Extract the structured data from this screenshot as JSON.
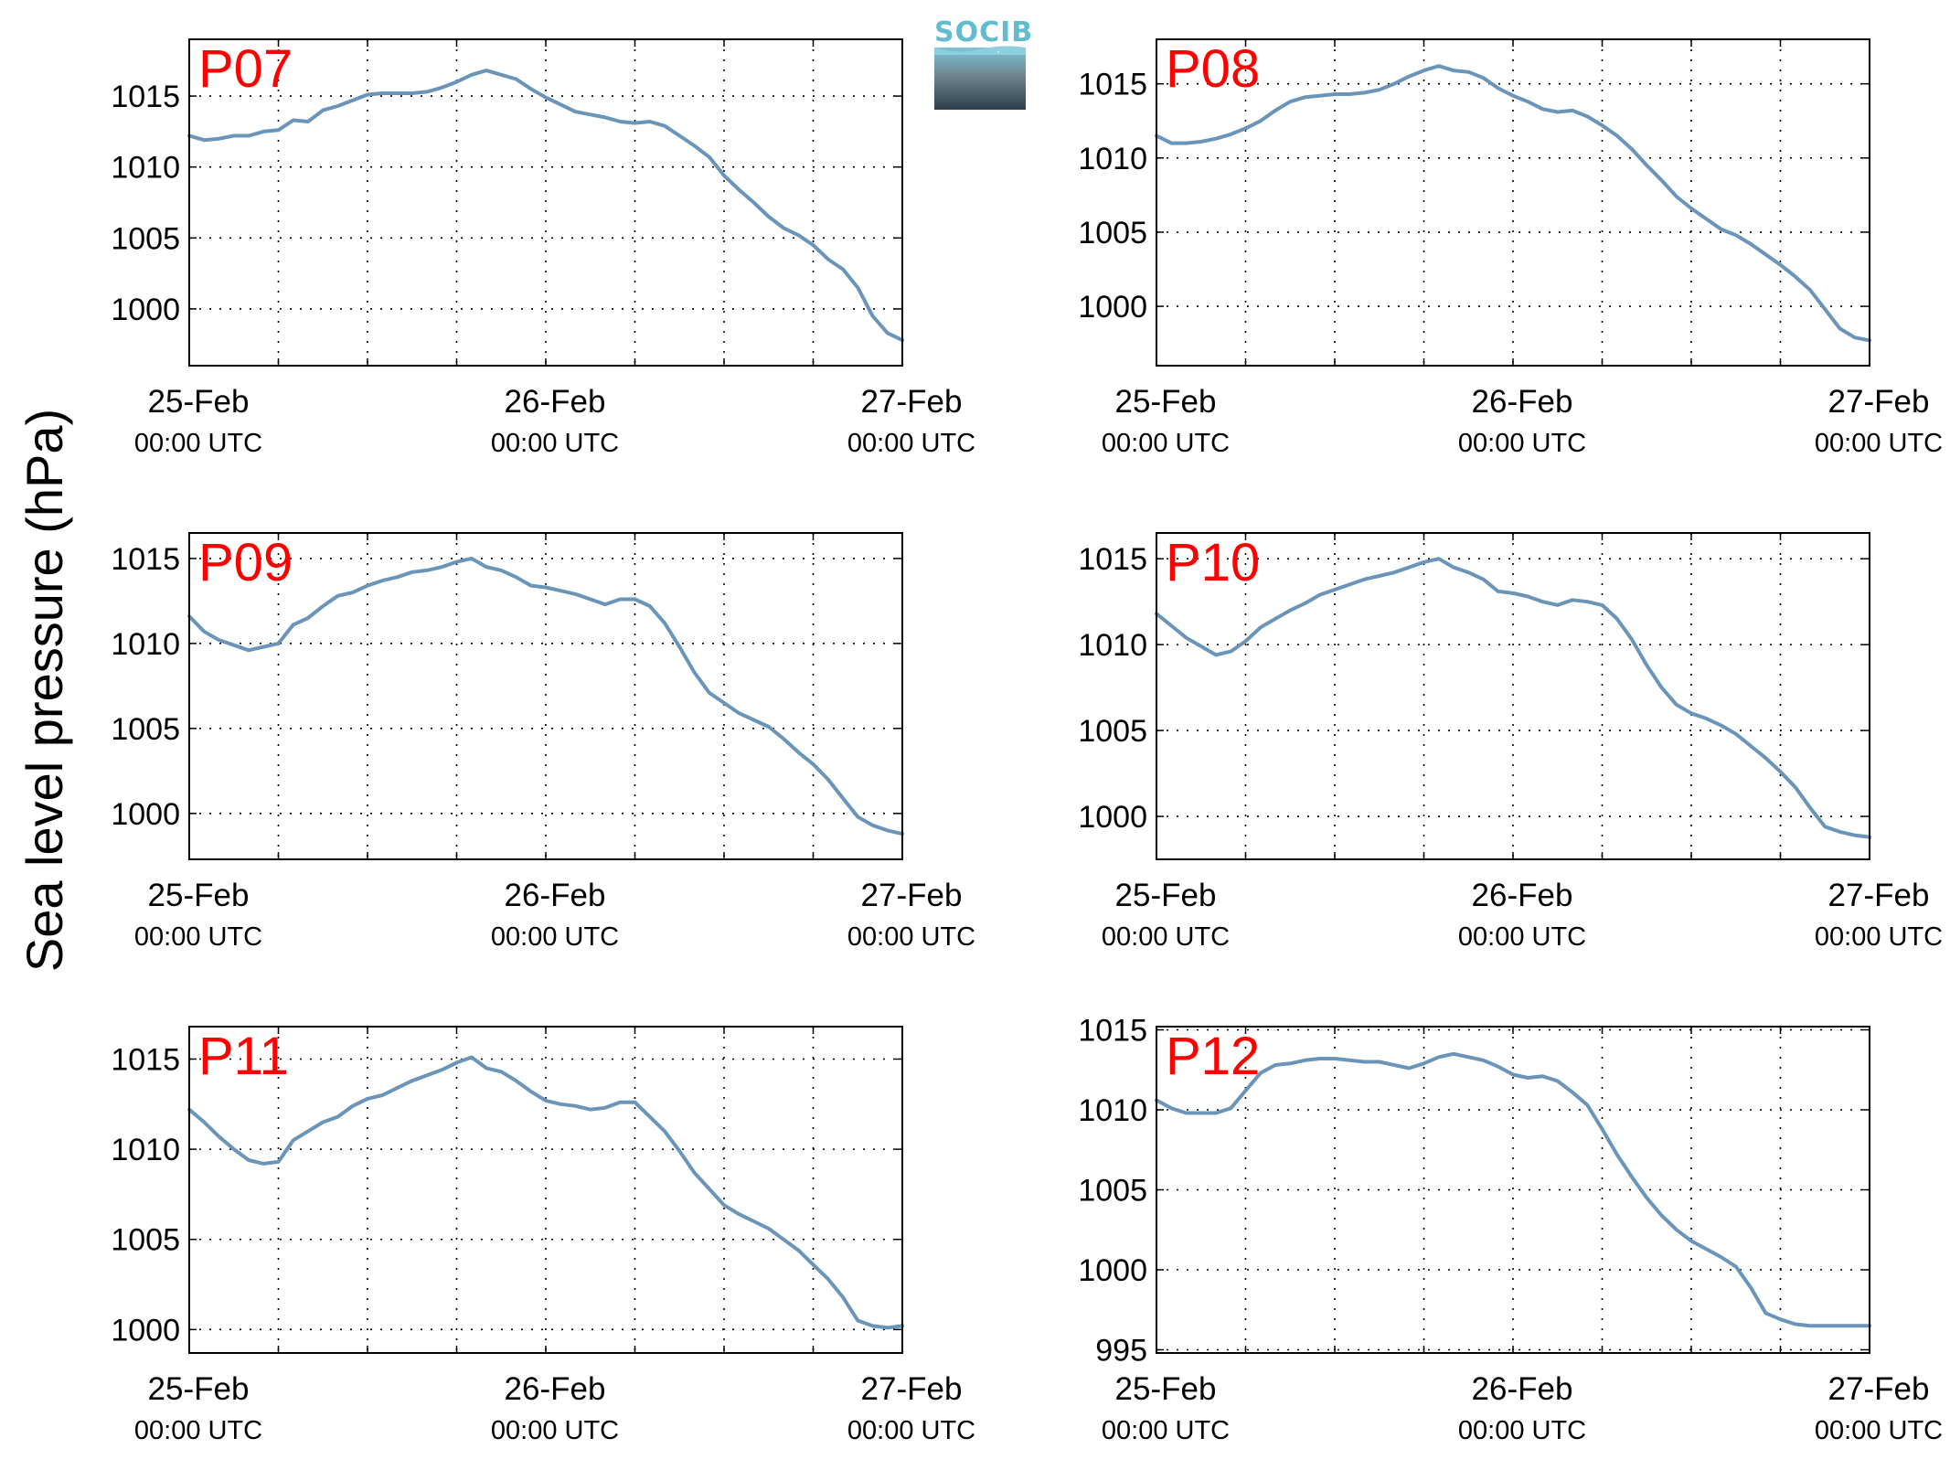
{
  "ylabel": "Sea level pressure (hPa)",
  "logo": {
    "text": "SOCIB"
  },
  "line_color": "#6a95b8",
  "label_color": "#ff0000",
  "chart_data": [
    {
      "type": "line",
      "title": "P07",
      "ylim": [
        996,
        1019
      ],
      "yticks": [
        1000,
        1005,
        1010,
        1015
      ],
      "xlim": [
        0,
        48
      ],
      "xticks": [
        0,
        24,
        48
      ],
      "xticklabels": [
        [
          "25-Feb",
          "00:00 UTC"
        ],
        [
          "26-Feb",
          "00:00 UTC"
        ],
        [
          "27-Feb",
          "00:00 UTC"
        ]
      ],
      "grid": true,
      "x": [
        0,
        1,
        2,
        3,
        4,
        5,
        6,
        7,
        8,
        9,
        10,
        11,
        12,
        13,
        14,
        15,
        16,
        17,
        18,
        19,
        20,
        21,
        22,
        23,
        24,
        25,
        26,
        27,
        28,
        29,
        30,
        31,
        32,
        33,
        34,
        35,
        36,
        37,
        38,
        39,
        40,
        41,
        42,
        43,
        44,
        45,
        46,
        47,
        48
      ],
      "values": [
        1012.2,
        1011.9,
        1012.0,
        1012.2,
        1012.2,
        1012.5,
        1012.6,
        1013.3,
        1013.2,
        1014.0,
        1014.3,
        1014.7,
        1015.1,
        1015.2,
        1015.2,
        1015.2,
        1015.3,
        1015.6,
        1016.0,
        1016.5,
        1016.8,
        1016.5,
        1016.2,
        1015.5,
        1014.9,
        1014.4,
        1013.9,
        1013.7,
        1013.5,
        1013.2,
        1013.1,
        1013.2,
        1012.9,
        1012.2,
        1011.5,
        1010.7,
        1009.4,
        1008.4,
        1007.5,
        1006.5,
        1005.7,
        1005.2,
        1004.5,
        1003.5,
        1002.8,
        1001.5,
        999.5,
        998.3,
        997.8
      ]
    },
    {
      "type": "line",
      "title": "P08",
      "ylim": [
        996,
        1018
      ],
      "yticks": [
        1000,
        1005,
        1010,
        1015
      ],
      "xlim": [
        0,
        48
      ],
      "xticks": [
        0,
        24,
        48
      ],
      "xticklabels": [
        [
          "25-Feb",
          "00:00 UTC"
        ],
        [
          "26-Feb",
          "00:00 UTC"
        ],
        [
          "27-Feb",
          "00:00 UTC"
        ]
      ],
      "grid": true,
      "x": [
        0,
        1,
        2,
        3,
        4,
        5,
        6,
        7,
        8,
        9,
        10,
        11,
        12,
        13,
        14,
        15,
        16,
        17,
        18,
        19,
        20,
        21,
        22,
        23,
        24,
        25,
        26,
        27,
        28,
        29,
        30,
        31,
        32,
        33,
        34,
        35,
        36,
        37,
        38,
        39,
        40,
        41,
        42,
        43,
        44,
        45,
        46,
        47,
        48
      ],
      "values": [
        1011.5,
        1011.0,
        1011.0,
        1011.1,
        1011.3,
        1011.6,
        1012.0,
        1012.5,
        1013.2,
        1013.8,
        1014.1,
        1014.2,
        1014.3,
        1014.3,
        1014.4,
        1014.6,
        1015.0,
        1015.5,
        1015.9,
        1016.2,
        1015.9,
        1015.8,
        1015.4,
        1014.7,
        1014.2,
        1013.8,
        1013.3,
        1013.1,
        1013.2,
        1012.8,
        1012.2,
        1011.5,
        1010.6,
        1009.5,
        1008.5,
        1007.4,
        1006.6,
        1005.9,
        1005.2,
        1004.8,
        1004.2,
        1003.5,
        1002.8,
        1002.0,
        1001.1,
        999.8,
        998.5,
        997.9,
        997.7
      ]
    },
    {
      "type": "line",
      "title": "P09",
      "ylim": [
        997.3,
        1016.5
      ],
      "yticks": [
        1000,
        1005,
        1010,
        1015
      ],
      "xlim": [
        0,
        48
      ],
      "xticks": [
        0,
        24,
        48
      ],
      "xticklabels": [
        [
          "25-Feb",
          "00:00 UTC"
        ],
        [
          "26-Feb",
          "00:00 UTC"
        ],
        [
          "27-Feb",
          "00:00 UTC"
        ]
      ],
      "grid": true,
      "x": [
        0,
        1,
        2,
        3,
        4,
        5,
        6,
        7,
        8,
        9,
        10,
        11,
        12,
        13,
        14,
        15,
        16,
        17,
        18,
        19,
        20,
        21,
        22,
        23,
        24,
        25,
        26,
        27,
        28,
        29,
        30,
        31,
        32,
        33,
        34,
        35,
        36,
        37,
        38,
        39,
        40,
        41,
        42,
        43,
        44,
        45,
        46,
        47,
        48
      ],
      "values": [
        1011.6,
        1010.7,
        1010.2,
        1009.9,
        1009.6,
        1009.8,
        1010.0,
        1011.1,
        1011.5,
        1012.2,
        1012.8,
        1013.0,
        1013.4,
        1013.7,
        1013.9,
        1014.2,
        1014.3,
        1014.5,
        1014.8,
        1015.0,
        1014.5,
        1014.3,
        1013.9,
        1013.4,
        1013.3,
        1013.1,
        1012.9,
        1012.6,
        1012.3,
        1012.6,
        1012.6,
        1012.2,
        1011.2,
        1009.8,
        1008.3,
        1007.1,
        1006.5,
        1005.9,
        1005.5,
        1005.1,
        1004.4,
        1003.6,
        1002.9,
        1002.0,
        1000.9,
        999.8,
        999.3,
        999.0,
        998.8
      ]
    },
    {
      "type": "line",
      "title": "P10",
      "ylim": [
        997.5,
        1016.5
      ],
      "yticks": [
        1000,
        1005,
        1010,
        1015
      ],
      "xlim": [
        0,
        48
      ],
      "xticks": [
        0,
        24,
        48
      ],
      "xticklabels": [
        [
          "25-Feb",
          "00:00 UTC"
        ],
        [
          "26-Feb",
          "00:00 UTC"
        ],
        [
          "27-Feb",
          "00:00 UTC"
        ]
      ],
      "grid": true,
      "x": [
        0,
        1,
        2,
        3,
        4,
        5,
        6,
        7,
        8,
        9,
        10,
        11,
        12,
        13,
        14,
        15,
        16,
        17,
        18,
        19,
        20,
        21,
        22,
        23,
        24,
        25,
        26,
        27,
        28,
        29,
        30,
        31,
        32,
        33,
        34,
        35,
        36,
        37,
        38,
        39,
        40,
        41,
        42,
        43,
        44,
        45,
        46,
        47,
        48
      ],
      "values": [
        1011.8,
        1011.1,
        1010.4,
        1009.9,
        1009.4,
        1009.6,
        1010.2,
        1011.0,
        1011.5,
        1012.0,
        1012.4,
        1012.9,
        1013.2,
        1013.5,
        1013.8,
        1014.0,
        1014.2,
        1014.5,
        1014.8,
        1015.0,
        1014.5,
        1014.2,
        1013.8,
        1013.1,
        1013.0,
        1012.8,
        1012.5,
        1012.3,
        1012.6,
        1012.5,
        1012.3,
        1011.5,
        1010.3,
        1008.8,
        1007.5,
        1006.5,
        1006.0,
        1005.7,
        1005.3,
        1004.8,
        1004.1,
        1003.4,
        1002.6,
        1001.7,
        1000.5,
        999.4,
        999.1,
        998.9,
        998.8
      ]
    },
    {
      "type": "line",
      "title": "P11",
      "ylim": [
        998.7,
        1016.8
      ],
      "yticks": [
        1000,
        1005,
        1010,
        1015
      ],
      "xlim": [
        0,
        48
      ],
      "xticks": [
        0,
        24,
        48
      ],
      "xticklabels": [
        [
          "25-Feb",
          "00:00 UTC"
        ],
        [
          "26-Feb",
          "00:00 UTC"
        ],
        [
          "27-Feb",
          "00:00 UTC"
        ]
      ],
      "grid": true,
      "x": [
        0,
        1,
        2,
        3,
        4,
        5,
        6,
        7,
        8,
        9,
        10,
        11,
        12,
        13,
        14,
        15,
        16,
        17,
        18,
        19,
        20,
        21,
        22,
        23,
        24,
        25,
        26,
        27,
        28,
        29,
        30,
        31,
        32,
        33,
        34,
        35,
        36,
        37,
        38,
        39,
        40,
        41,
        42,
        43,
        44,
        45,
        46,
        47,
        48
      ],
      "values": [
        1012.2,
        1011.5,
        1010.7,
        1010.0,
        1009.4,
        1009.2,
        1009.3,
        1010.5,
        1011.0,
        1011.5,
        1011.8,
        1012.4,
        1012.8,
        1013.0,
        1013.4,
        1013.8,
        1014.1,
        1014.4,
        1014.8,
        1015.1,
        1014.5,
        1014.3,
        1013.8,
        1013.2,
        1012.7,
        1012.5,
        1012.4,
        1012.2,
        1012.3,
        1012.6,
        1012.6,
        1011.8,
        1011.0,
        1009.9,
        1008.7,
        1007.8,
        1006.9,
        1006.4,
        1006.0,
        1005.6,
        1005.0,
        1004.4,
        1003.6,
        1002.8,
        1001.8,
        1000.5,
        1000.2,
        1000.1,
        1000.2
      ]
    },
    {
      "type": "line",
      "title": "P12",
      "ylim": [
        994.8,
        1015.2
      ],
      "yticks": [
        995,
        1000,
        1005,
        1010,
        1015
      ],
      "xlim": [
        0,
        48
      ],
      "xticks": [
        0,
        24,
        48
      ],
      "xticklabels": [
        [
          "25-Feb",
          "00:00 UTC"
        ],
        [
          "26-Feb",
          "00:00 UTC"
        ],
        [
          "27-Feb",
          "00:00 UTC"
        ]
      ],
      "grid": true,
      "x": [
        0,
        1,
        2,
        3,
        4,
        5,
        6,
        7,
        8,
        9,
        10,
        11,
        12,
        13,
        14,
        15,
        16,
        17,
        18,
        19,
        20,
        21,
        22,
        23,
        24,
        25,
        26,
        27,
        28,
        29,
        30,
        31,
        32,
        33,
        34,
        35,
        36,
        37,
        38,
        39,
        40,
        41,
        42,
        43,
        44,
        45,
        46,
        47,
        48
      ],
      "values": [
        1010.6,
        1010.1,
        1009.8,
        1009.8,
        1009.8,
        1010.1,
        1011.2,
        1012.3,
        1012.8,
        1012.9,
        1013.1,
        1013.2,
        1013.2,
        1013.1,
        1013.0,
        1013.0,
        1012.8,
        1012.6,
        1012.9,
        1013.3,
        1013.5,
        1013.3,
        1013.1,
        1012.7,
        1012.2,
        1012.0,
        1012.1,
        1011.8,
        1011.1,
        1010.3,
        1008.8,
        1007.2,
        1005.8,
        1004.5,
        1003.4,
        1002.5,
        1001.8,
        1001.3,
        1000.8,
        1000.2,
        998.9,
        997.3,
        996.9,
        996.6,
        996.5,
        996.5,
        996.5,
        996.5,
        996.5
      ]
    }
  ]
}
